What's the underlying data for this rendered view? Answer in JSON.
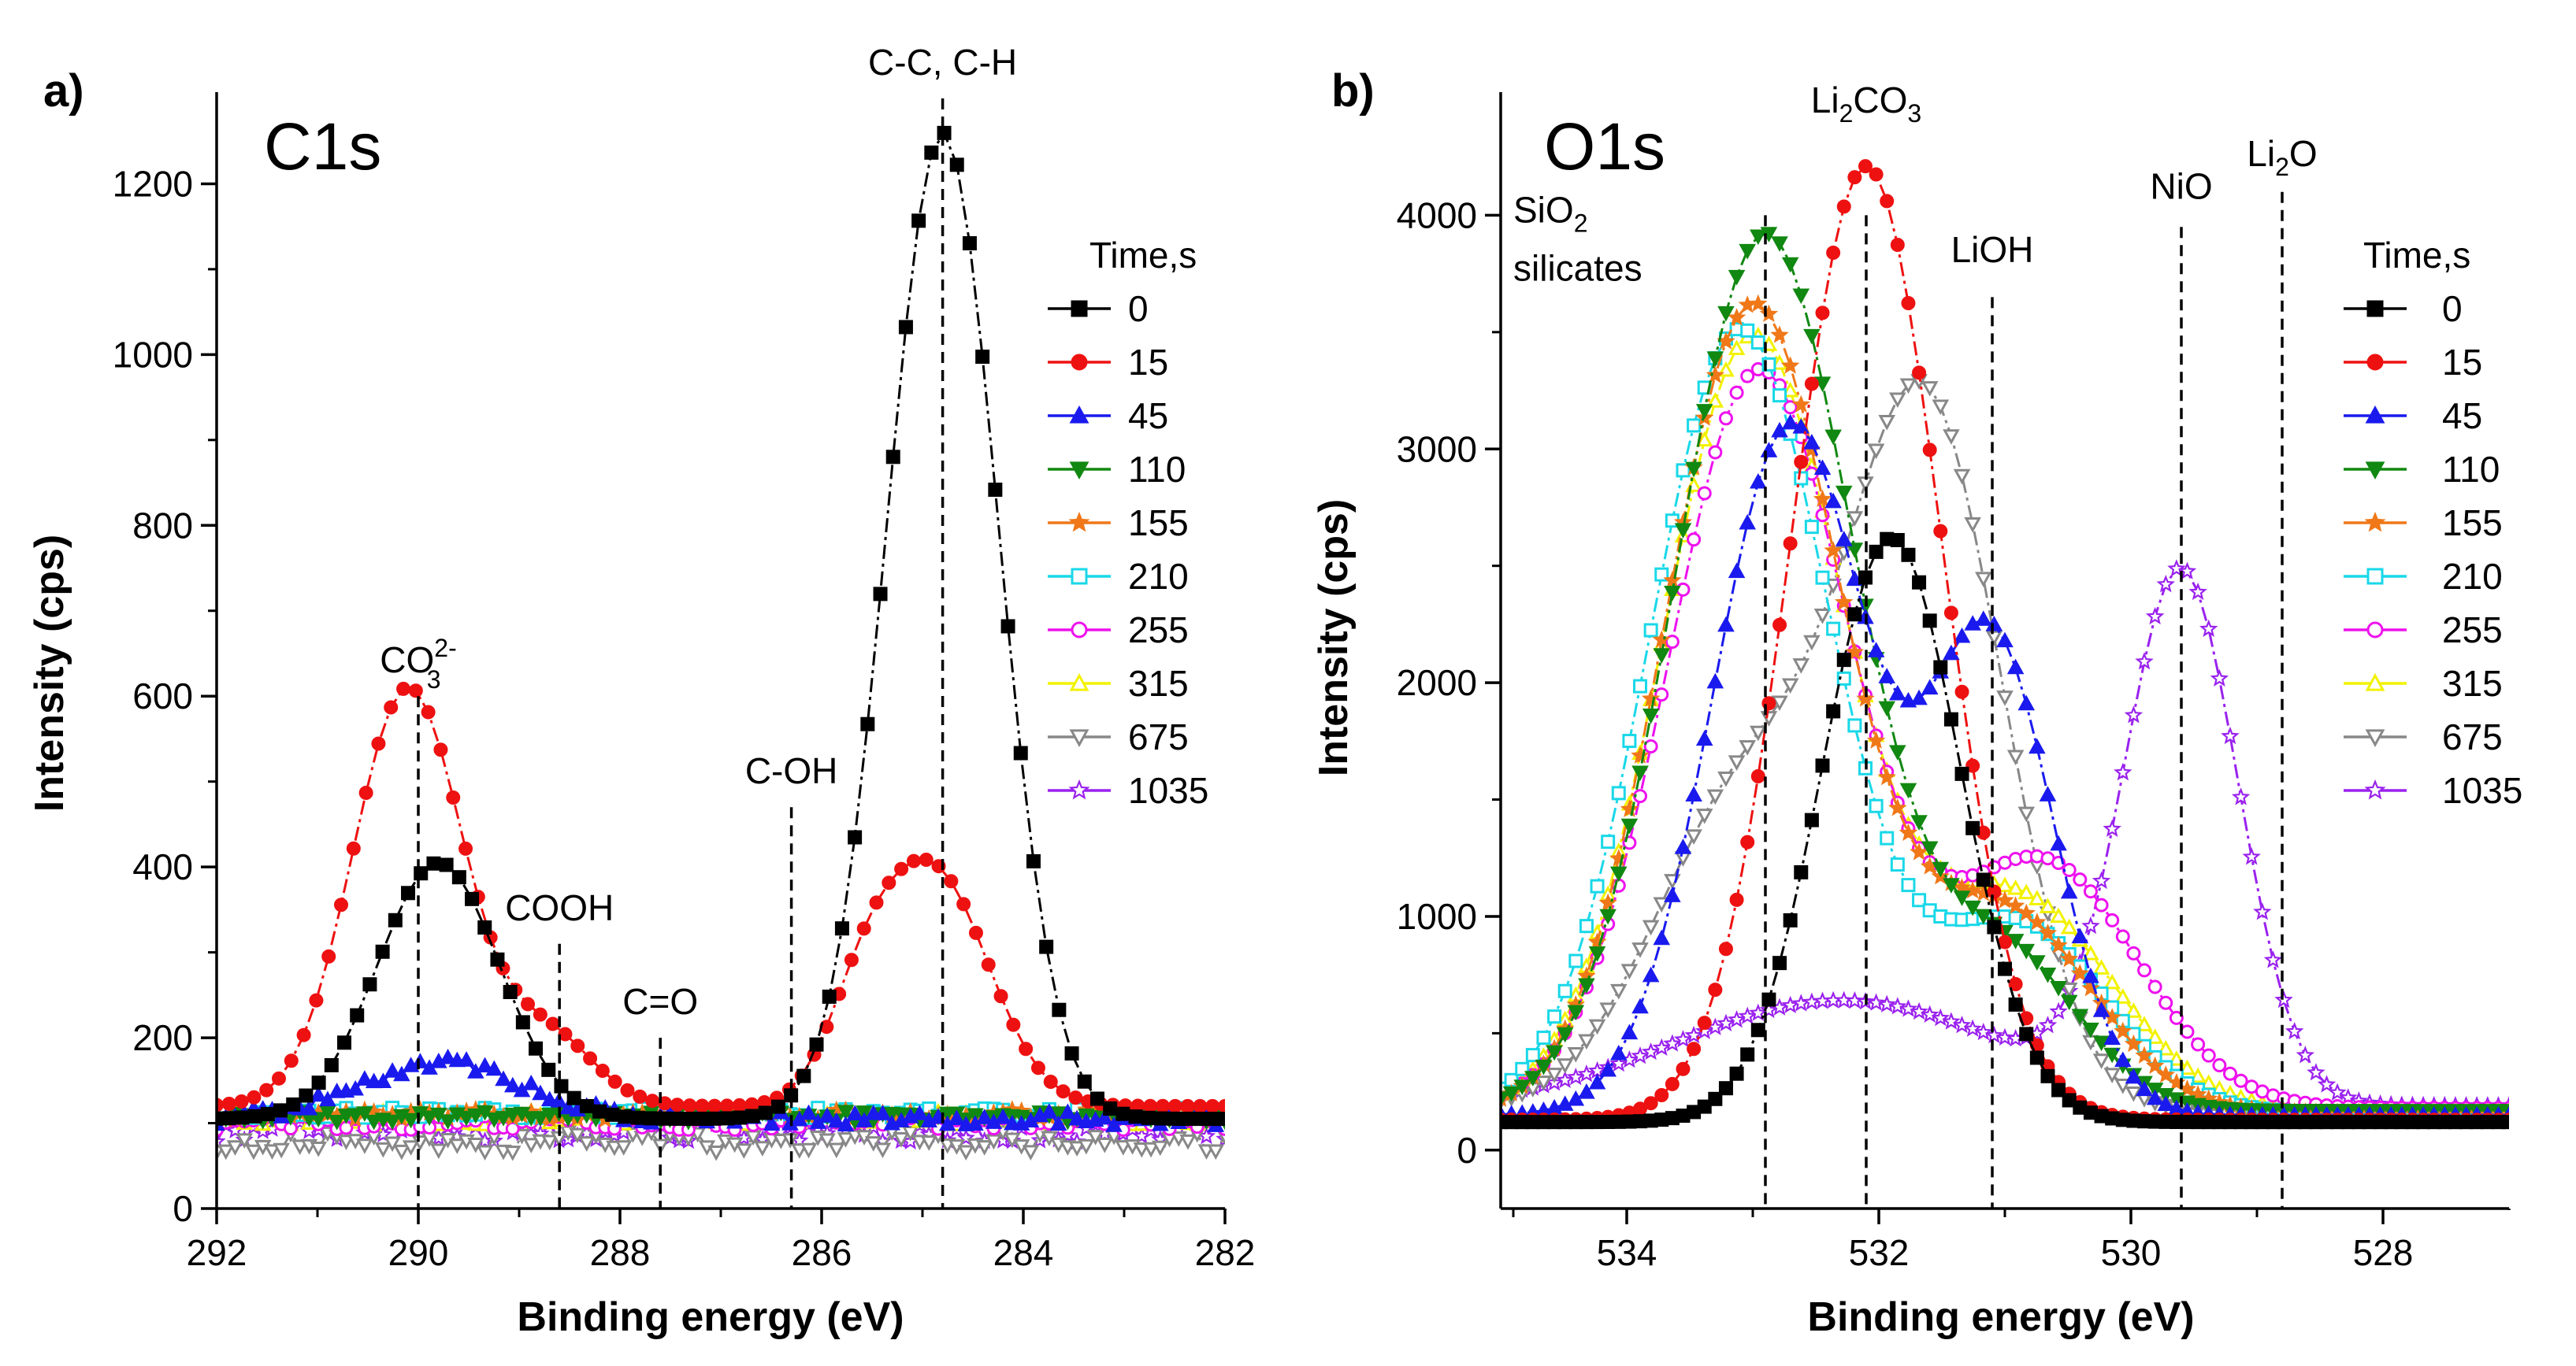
{
  "figure": {
    "panel_labels": [
      "a)",
      "b)"
    ]
  },
  "colors": {
    "0": "#000000",
    "15": "#ee1111",
    "45": "#1a1aee",
    "110": "#118811",
    "155": "#f07818",
    "210": "#19d8e8",
    "255": "#ee11ee",
    "315": "#f2f200",
    "675": "#888888",
    "1035": "#9a22ee"
  },
  "chart_data": [
    {
      "type": "line",
      "panel": "a)",
      "title": "C1s",
      "xlabel": "Binding energy (eV)",
      "ylabel": "Intensity (cps)",
      "xlim": [
        292,
        282
      ],
      "ylim": [
        0,
        1300
      ],
      "xticks": [
        292,
        290,
        288,
        286,
        284,
        282
      ],
      "xtick_labels": [
        "292",
        "290",
        "288",
        "286",
        "284",
        "282"
      ],
      "yticks": [
        0,
        200,
        400,
        600,
        800,
        1000,
        1200
      ],
      "ytick_labels": [
        "0",
        "200",
        "400",
        "600",
        "800",
        "1000",
        "1200"
      ],
      "legend_title": "Time,s",
      "legend_position": "right",
      "reference_lines": [
        {
          "x": 290.0,
          "top": 600,
          "label": "CO₃²⁻",
          "label_main": "CO",
          "label_sub": "3",
          "label_sup": "2-"
        },
        {
          "x": 288.6,
          "top": 310,
          "label": "COOH"
        },
        {
          "x": 287.6,
          "top": 200,
          "label": "C=O"
        },
        {
          "x": 286.3,
          "top": 470,
          "label": "C-OH"
        },
        {
          "x": 284.8,
          "top": 1300,
          "label": "C-C, C-H"
        }
      ],
      "series": [
        {
          "name": "0",
          "marker": "square",
          "filled": true,
          "peaks": [
            [
              284.8,
              1155,
              0.55
            ],
            [
              289.8,
              300,
              0.6
            ]
          ],
          "base": 105,
          "noise": 0,
          "points": 80
        },
        {
          "name": "15",
          "marker": "circle",
          "filled": true,
          "peaks": [
            [
              290.1,
              490,
              0.55
            ],
            [
              284.9,
              275,
              0.55
            ],
            [
              285.6,
              80,
              0.35
            ],
            [
              288.7,
              80,
              0.45
            ]
          ],
          "base": 120,
          "noise": 0,
          "points": 82
        },
        {
          "name": "45",
          "marker": "triangle-up",
          "filled": true,
          "peaks": [
            [
              289.8,
              65,
              0.8
            ]
          ],
          "base": 105,
          "noise": 8,
          "points": 110
        },
        {
          "name": "110",
          "marker": "triangle-down",
          "filled": true,
          "peaks": [],
          "base": 108,
          "noise": 6,
          "points": 110
        },
        {
          "name": "155",
          "marker": "star",
          "filled": true,
          "peaks": [],
          "base": 110,
          "noise": 6,
          "points": 110
        },
        {
          "name": "210",
          "marker": "square",
          "filled": false,
          "peaks": [],
          "base": 112,
          "noise": 6,
          "points": 110
        },
        {
          "name": "255",
          "marker": "circle",
          "filled": false,
          "peaks": [],
          "base": 100,
          "noise": 8,
          "points": 110
        },
        {
          "name": "315",
          "marker": "triangle-up",
          "filled": false,
          "peaks": [],
          "base": 106,
          "noise": 8,
          "points": 110
        },
        {
          "name": "675",
          "marker": "triangle-down",
          "filled": false,
          "peaks": [],
          "base": 78,
          "noise": 12,
          "points": 110
        },
        {
          "name": "1035",
          "marker": "star",
          "filled": false,
          "peaks": [],
          "base": 90,
          "noise": 12,
          "points": 110
        }
      ]
    },
    {
      "type": "line",
      "panel": "b)",
      "title": "O1s",
      "xlabel": "Binding energy (eV)",
      "ylabel": "Intensity (cps)",
      "xlim": [
        535,
        527
      ],
      "ylim": [
        -250,
        4500
      ],
      "xticks": [
        534,
        532,
        530,
        528
      ],
      "xtick_labels": [
        "534",
        "532",
        "530",
        "528"
      ],
      "yticks": [
        0,
        1000,
        2000,
        3000,
        4000
      ],
      "ytick_labels": [
        "0",
        "1000",
        "2000",
        "3000",
        "4000"
      ],
      "legend_title": "Time,s",
      "legend_position": "right",
      "annotations": [
        {
          "label": "SiO₂",
          "label_main": "SiO",
          "label_sub": "2",
          "x": 534.9,
          "y": 3970
        },
        {
          "label": "silicates",
          "x": 534.9,
          "y": 3720
        }
      ],
      "reference_lines": [
        {
          "x": 532.9,
          "top": 4000,
          "label": ""
        },
        {
          "x": 532.1,
          "top": 4000,
          "label": "Li₂CO₃",
          "label_main": "Li",
          "label_sub": "2",
          "label_tail": "CO",
          "label_sub2": "3",
          "label_y": 4440
        },
        {
          "x": 531.1,
          "top": 3650,
          "label": "LiOH",
          "label_y": 3800
        },
        {
          "x": 529.6,
          "top": 3950,
          "label": "NiO",
          "label_y": 4070
        },
        {
          "x": 528.8,
          "top": 4100,
          "label": "Li₂O",
          "label_main": "Li",
          "label_sub": "2",
          "label_tail": "O",
          "label_y": 4210
        }
      ],
      "series": [
        {
          "name": "0",
          "marker": "square",
          "filled": true,
          "peaks": [
            [
              531.9,
              2500,
              0.55
            ]
          ],
          "base": 120,
          "noise": 0,
          "points": 95
        },
        {
          "name": "15",
          "marker": "circle",
          "filled": true,
          "peaks": [
            [
              532.1,
              4080,
              0.6
            ]
          ],
          "base": 130,
          "noise": 0,
          "points": 95
        },
        {
          "name": "45",
          "marker": "triangle-up",
          "filled": true,
          "peaks": [
            [
              532.7,
              2950,
              0.62
            ],
            [
              531.1,
              2000,
              0.5
            ]
          ],
          "base": 150,
          "noise": 0,
          "points": 95
        },
        {
          "name": "110",
          "marker": "triangle-down",
          "filled": true,
          "peaks": [
            [
              532.9,
              3750,
              0.72
            ],
            [
              531.0,
              650,
              0.6
            ]
          ],
          "base": 170,
          "noise": 0,
          "points": 95
        },
        {
          "name": "155",
          "marker": "star",
          "filled": true,
          "peaks": [
            [
              533.0,
              3450,
              0.7
            ],
            [
              531.0,
              850,
              0.7
            ]
          ],
          "base": 160,
          "noise": 0,
          "points": 95
        },
        {
          "name": "210",
          "marker": "square",
          "filled": false,
          "peaks": [
            [
              533.1,
              3350,
              0.72
            ],
            [
              530.9,
              800,
              0.7
            ]
          ],
          "base": 160,
          "noise": 0,
          "points": 95
        },
        {
          "name": "255",
          "marker": "circle",
          "filled": false,
          "peaks": [
            [
              532.95,
              3150,
              0.72
            ],
            [
              530.7,
              1050,
              0.75
            ]
          ],
          "base": 180,
          "noise": 0,
          "points": 95
        },
        {
          "name": "315",
          "marker": "triangle-up",
          "filled": false,
          "peaks": [
            [
              533.0,
              3300,
              0.72
            ],
            [
              530.9,
              900,
              0.75
            ]
          ],
          "base": 170,
          "noise": 0,
          "points": 95
        },
        {
          "name": "675",
          "marker": "triangle-down",
          "filled": false,
          "peaks": [
            [
              533.0,
              1400,
              0.75
            ],
            [
              531.6,
              2850,
              0.6
            ]
          ],
          "base": 170,
          "noise": 0,
          "points": 95
        },
        {
          "name": "1035",
          "marker": "star",
          "filled": false,
          "peaks": [
            [
              529.6,
              2250,
              0.45
            ],
            [
              532.3,
              450,
              1.3
            ]
          ],
          "base": 190,
          "noise": 0,
          "points": 95
        }
      ]
    }
  ]
}
